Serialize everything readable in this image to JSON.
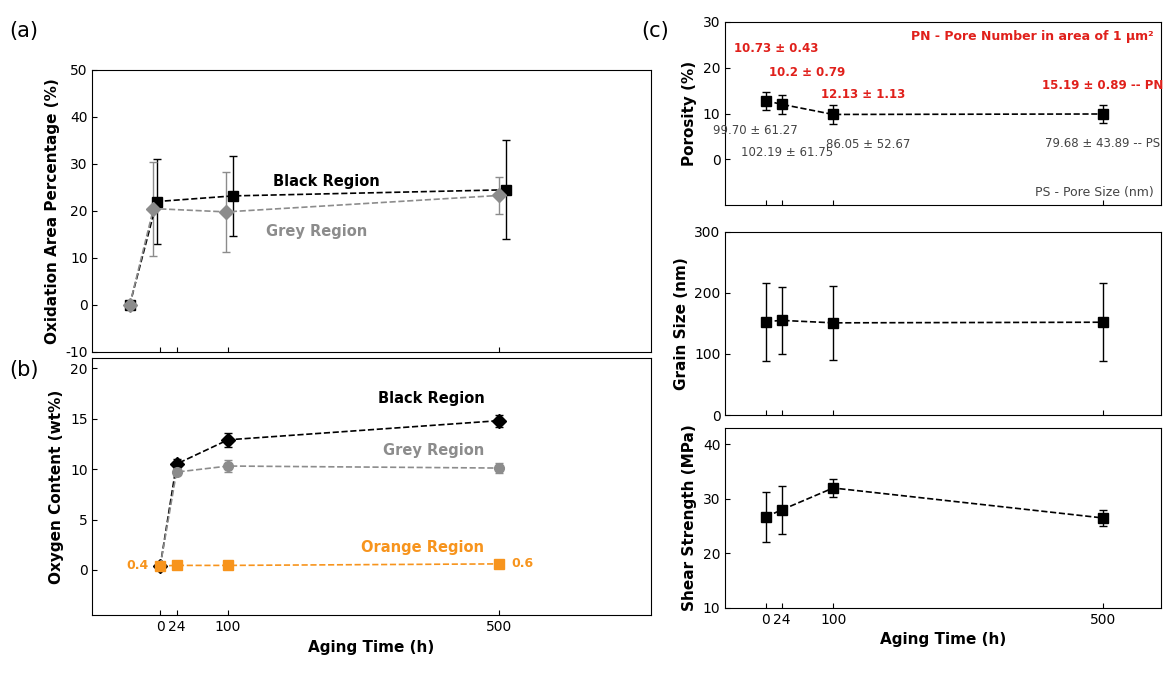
{
  "chart_data": [
    {
      "panel": "(a)",
      "type": "line",
      "ylabel": "Oxidation Area Percentage (%)",
      "xlim": [
        -100,
        723
      ],
      "xticks": [
        0,
        24,
        100,
        500
      ],
      "ylim": [
        -10,
        50
      ],
      "yticks": [
        -10,
        0,
        10,
        20,
        30,
        40,
        50
      ],
      "tick_labels": "y",
      "series": [
        {
          "name": "Black Region",
          "color": "#000000",
          "marker": "square",
          "line_style": "dashed",
          "x": [
            -45,
            -5,
            107,
            510
          ],
          "values": [
            0,
            22,
            23.2,
            24.5
          ],
          "errors": [
            0,
            9,
            8.5,
            10.5
          ]
        },
        {
          "name": "Grey Region",
          "color": "#8c8c8c",
          "marker": "diamond",
          "line_style": "dashed",
          "x": [
            -45,
            -10,
            97,
            500
          ],
          "values": [
            0,
            20.5,
            19.8,
            23.3
          ],
          "errors": [
            0,
            10,
            8.5,
            4
          ]
        }
      ]
    },
    {
      "panel": "(b)",
      "type": "line",
      "xlabel": "Aging Time (h)",
      "ylabel": "Oxygen Content (wt%)",
      "xlim": [
        -100,
        723
      ],
      "xticks": [
        0,
        24,
        100,
        500
      ],
      "ylim": [
        -4.5,
        21
      ],
      "yticks": [
        0,
        5,
        10,
        15,
        20
      ],
      "series": [
        {
          "name": "Black Region",
          "color": "#000000",
          "marker": "diamond",
          "line_style": "dashed",
          "x": [
            0,
            24,
            100,
            500
          ],
          "values": [
            0.4,
            10.5,
            12.9,
            14.8
          ],
          "errors": [
            0.1,
            0.5,
            0.7,
            0.6
          ]
        },
        {
          "name": "Grey Region",
          "color": "#8c8c8c",
          "marker": "circle",
          "line_style": "dashed",
          "x": [
            0,
            24,
            100,
            500
          ],
          "values": [
            0.4,
            9.7,
            10.3,
            10.1
          ],
          "errors": [
            0.1,
            0.3,
            0.6,
            0.5
          ]
        },
        {
          "name": "Orange Region",
          "color": "#f7941d",
          "marker": "square",
          "line_style": "dashed",
          "x": [
            0,
            24,
            100,
            500
          ],
          "values": [
            0.4,
            0.45,
            0.45,
            0.6
          ],
          "value_labels": [
            "0.4",
            null,
            null,
            "0.6"
          ]
        }
      ]
    },
    {
      "panel": "(c)",
      "type": "line",
      "ylabel": "Porosity (%)",
      "xlim": [
        -60,
        586
      ],
      "xticks": [
        0,
        24,
        100,
        500
      ],
      "ylim": [
        -10,
        30
      ],
      "yticks": [
        0,
        10,
        20,
        30
      ],
      "tick_labels": "y",
      "pore_number_note": "PN - Pore Number in area of 1 μm²",
      "pore_size_note": "PS - Pore Size (nm)",
      "series": [
        {
          "color": "#000000",
          "marker": "square",
          "line_style": "dashed",
          "x": [
            0,
            24,
            100,
            500
          ],
          "values": [
            12.8,
            12.0,
            9.8,
            9.9
          ],
          "errors": [
            2,
            2,
            2,
            2
          ],
          "pore_number_labels": [
            "10.73 ± 0.43",
            "10.2 ± 0.79",
            "12.13 ± 1.13",
            "15.19 ± 0.89 -- PN"
          ],
          "pore_size_labels": [
            "99.70 ± 61.27",
            "102.19 ± 61.75",
            "86.05 ± 52.67",
            "79.68 ± 43.89 -- PS"
          ]
        }
      ]
    },
    {
      "type": "line",
      "ylabel": "Grain Size (nm)",
      "xlim": [
        -60,
        586
      ],
      "xticks": [
        0,
        24,
        100,
        500
      ],
      "ylim": [
        0,
        300
      ],
      "yticks": [
        0,
        100,
        200,
        300
      ],
      "tick_labels": "y",
      "series": [
        {
          "color": "#000000",
          "marker": "square",
          "line_style": "dashed",
          "x": [
            0,
            24,
            100,
            500
          ],
          "values": [
            153,
            155,
            151,
            152
          ],
          "errors": [
            64,
            55,
            61,
            64
          ]
        }
      ]
    },
    {
      "type": "line",
      "xlabel": "Aging Time (h)",
      "ylabel": "Shear Strength (MPa)",
      "xlim": [
        -60,
        586
      ],
      "xticks": [
        0,
        24,
        100,
        500
      ],
      "ylim": [
        10,
        43
      ],
      "yticks": [
        10,
        20,
        30,
        40
      ],
      "series": [
        {
          "color": "#000000",
          "marker": "square",
          "line_style": "dashed",
          "x": [
            0,
            24,
            100,
            500
          ],
          "values": [
            26.7,
            28.0,
            32.0,
            26.5
          ],
          "errors": [
            4.6,
            4.4,
            1.7,
            1.5
          ]
        }
      ]
    }
  ]
}
